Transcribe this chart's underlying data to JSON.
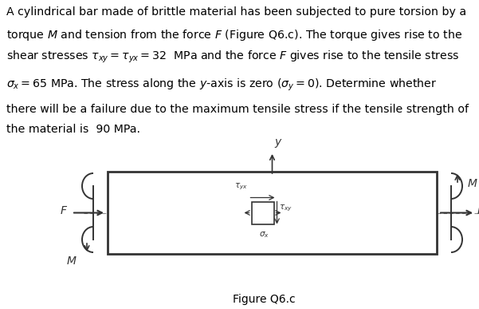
{
  "text_lines": [
    "A cylindrical bar made of brittle material has been subjected to pure torsion by a",
    "torque $M$ and tension from the force $F$ (Figure Q6.c). The torque gives rise to the",
    "shear stresses $\\tau_{xy} = \\tau_{yx} = 32$  MPa and the force $F$ gives rise to the tensile stress",
    "$\\sigma_x = 65$ MPa. The stress along the $y$-axis is zero ($\\sigma_y = 0$). Determine whether",
    "there will be a failure due to the maximum tensile stress if the tensile strength of",
    "the material is  90 MPa."
  ],
  "figure_caption": "Figure Q6.c",
  "background_color": "#ffffff",
  "text_color": "#000000",
  "fig_width": 6.01,
  "fig_height": 3.87,
  "dpi": 100
}
